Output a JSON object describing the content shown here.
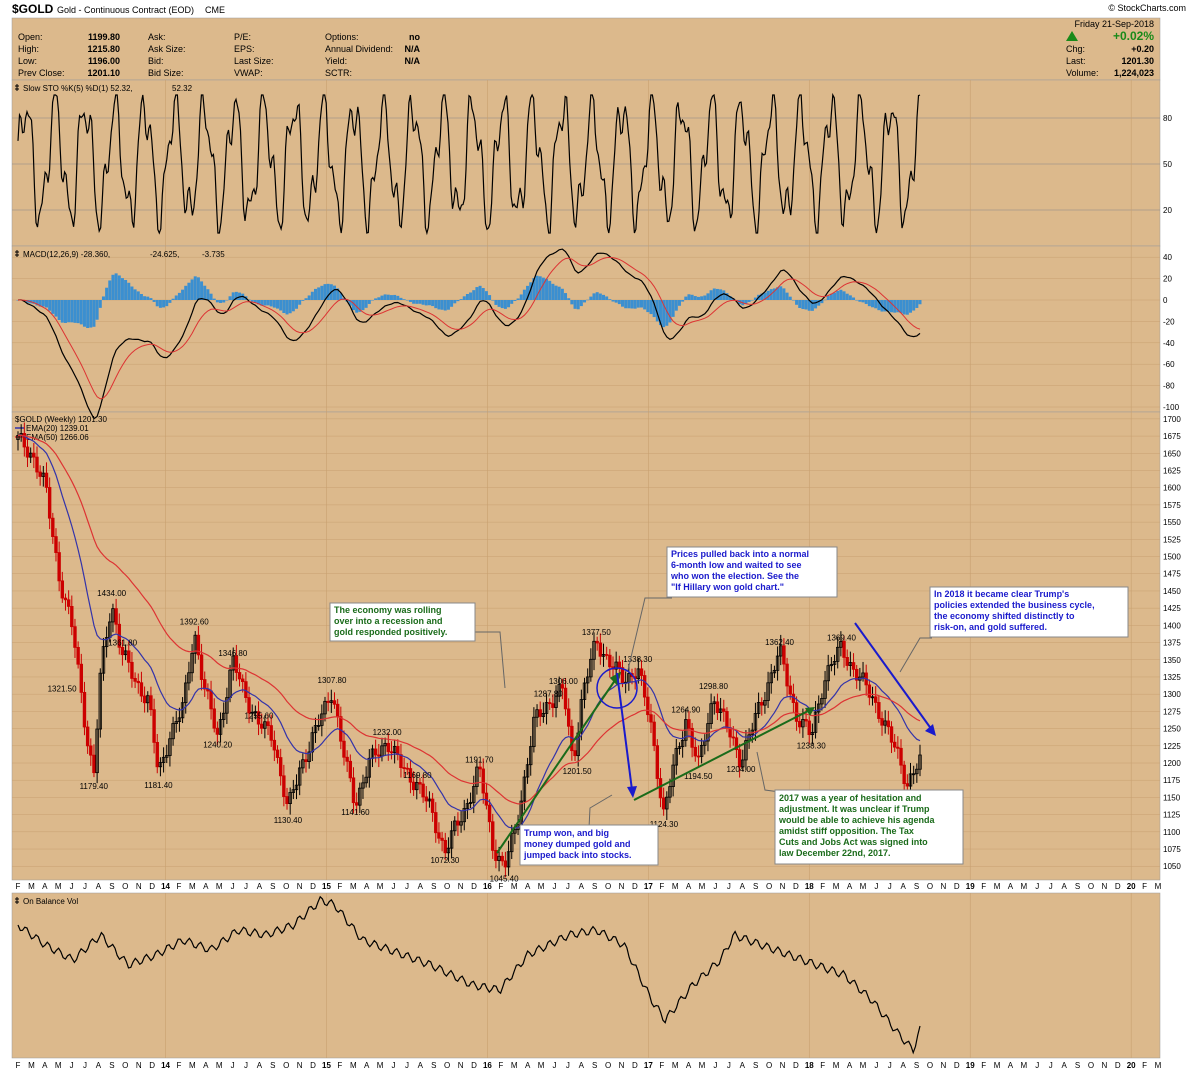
{
  "header": {
    "symbol": "$GOLD",
    "name": "Gold - Continuous Contract (EOD)",
    "exchange": "CME",
    "source": "© StockCharts.com",
    "date": "Friday  21-Sep-2018",
    "change_pct": "+0.02%",
    "chg_label": "Chg:",
    "chg": "+0.20",
    "last_label": "Last:",
    "last": "1201.30",
    "volume_label": "Volume:",
    "volume": "1,224,023",
    "arrow_color": "#1a8a1a",
    "quote": [
      {
        "label": "Open:",
        "value": "1199.80"
      },
      {
        "label": "High:",
        "value": "1215.80"
      },
      {
        "label": "Low:",
        "value": "1196.00"
      },
      {
        "label": "Prev Close:",
        "value": "1201.10"
      }
    ],
    "stats1": [
      {
        "label": "Ask:",
        "value": ""
      },
      {
        "label": "Ask Size:",
        "value": ""
      },
      {
        "label": "Bid:",
        "value": ""
      },
      {
        "label": "Bid Size:",
        "value": ""
      }
    ],
    "stats2": [
      {
        "label": "P/E:",
        "value": ""
      },
      {
        "label": "EPS:",
        "value": ""
      },
      {
        "label": "Last Size:",
        "value": ""
      },
      {
        "label": "VWAP:",
        "value": ""
      }
    ],
    "stats3": [
      {
        "label": "Options:",
        "value": "no"
      },
      {
        "label": "Annual Dividend:",
        "value": "N/A"
      },
      {
        "label": "Yield:",
        "value": "N/A"
      },
      {
        "label": "SCTR:",
        "value": ""
      }
    ]
  },
  "panels": {
    "sto_legend": "Slow STO %K(5) %D(1) 52.32,",
    "sto_legend_red": "52.32",
    "macd_legend": "MACD(12,26,9) -28.360,",
    "macd_signal": "-24.625,",
    "macd_hist": "-3.735",
    "price_legend": "$GOLD (Weekly) 1201.30",
    "ema20_legend": "EMA(20) 1239.01",
    "ema50_legend": "EMA(50) 1266.06",
    "obv_legend": "On Balance Vol"
  },
  "colors": {
    "panel_bg": "#dcb98c",
    "grid": "#c8a070",
    "price_up": "#000000",
    "price_down": "#cc0000",
    "ema20": "#3333aa",
    "ema50": "#dd3333",
    "macd_hist": "#3b8fd0",
    "annotation_green": "#1a6b1a",
    "annotation_blue": "#1a1acc"
  },
  "axis_labels": {
    "months": [
      "F",
      "M",
      "A",
      "M",
      "J",
      "J",
      "A",
      "S",
      "O",
      "N",
      "D",
      "14",
      "F",
      "M",
      "A",
      "M",
      "J",
      "J",
      "A",
      "S",
      "O",
      "N",
      "D",
      "15",
      "F",
      "M",
      "A",
      "M",
      "J",
      "J",
      "A",
      "S",
      "O",
      "N",
      "D",
      "16",
      "F",
      "M",
      "A",
      "M",
      "J",
      "J",
      "A",
      "S",
      "O",
      "N",
      "D",
      "17",
      "F",
      "M",
      "A",
      "M",
      "J",
      "J",
      "A",
      "S",
      "O",
      "N",
      "D",
      "18",
      "F",
      "M",
      "A",
      "M",
      "J",
      "J",
      "A",
      "S",
      "O",
      "N",
      "D",
      "19",
      "F",
      "M",
      "A",
      "M",
      "J",
      "J",
      "A",
      "S",
      "O",
      "N",
      "D",
      "20",
      "F",
      "M"
    ],
    "sto_ticks": [
      "80",
      "50",
      "20"
    ],
    "macd_ticks": [
      "40",
      "20",
      "0",
      "-20",
      "-40",
      "-60",
      "-80",
      "-100"
    ],
    "price_ticks": [
      "1700",
      "1675",
      "1650",
      "1625",
      "1600",
      "1575",
      "1550",
      "1525",
      "1500",
      "1475",
      "1450",
      "1425",
      "1400",
      "1375",
      "1350",
      "1325",
      "1300",
      "1275",
      "1250",
      "1225",
      "1200",
      "1175",
      "1150",
      "1125",
      "1100",
      "1075",
      "1050"
    ]
  },
  "chart_data": {
    "type": "candlestick",
    "title": "$GOLD Gold - Continuous Contract (EOD) CME",
    "y_range": [
      1030,
      1710
    ],
    "price_labels": [
      {
        "x": "Jul-13",
        "value": 1179.4,
        "label": "1179.40"
      },
      {
        "x": "Mar-13",
        "value": 1321.5,
        "label": "1321.50"
      },
      {
        "x": "Aug-13",
        "value": 1434.0,
        "label": "1434.00"
      },
      {
        "x": "Sep-13",
        "value": 1361.8,
        "label": "1361.80"
      },
      {
        "x": "Nov-13",
        "value": 1181.4,
        "label": "1181.40"
      },
      {
        "x": "Mar-14",
        "value": 1392.6,
        "label": "1392.60"
      },
      {
        "x": "May-14",
        "value": 1240.2,
        "label": "1240.20"
      },
      {
        "x": "Jun-14",
        "value": 1346.8,
        "label": "1346.80"
      },
      {
        "x": "Aug-14",
        "value": 1255.6,
        "label": "1255.60"
      },
      {
        "x": "Nov-14",
        "value": 1130.4,
        "label": "1130.40"
      },
      {
        "x": "Jan-15",
        "value": 1307.8,
        "label": "1307.80"
      },
      {
        "x": "Mar-15",
        "value": 1141.6,
        "label": "1141.60"
      },
      {
        "x": "May-15",
        "value": 1232.0,
        "label": "1232.00"
      },
      {
        "x": "Jul-15",
        "value": 1169.8,
        "label": "1169.80"
      },
      {
        "x": "Oct-15",
        "value": 1191.7,
        "label": "1191.70"
      },
      {
        "x": "Jul-15",
        "value": 1072.3,
        "label": "1072.30"
      },
      {
        "x": "Dec-15",
        "value": 1045.4,
        "label": "1045.40"
      },
      {
        "x": "Mar-16",
        "value": 1287.8,
        "label": "1287.80"
      },
      {
        "x": "May-16",
        "value": 1306.0,
        "label": "1306.00"
      },
      {
        "x": "May-16",
        "value": 1201.5,
        "label": "1201.50"
      },
      {
        "x": "Jul-16",
        "value": 1377.5,
        "label": "1377.50"
      },
      {
        "x": "Oct-16",
        "value": 1338.3,
        "label": "1338.30"
      },
      {
        "x": "Dec-16",
        "value": 1124.3,
        "label": "1124.30"
      },
      {
        "x": "Feb-17",
        "value": 1264.9,
        "label": "1264.90"
      },
      {
        "x": "Mar-17",
        "value": 1194.5,
        "label": "1194.50"
      },
      {
        "x": "Apr-17",
        "value": 1298.8,
        "label": "1298.80"
      },
      {
        "x": "Jul-17",
        "value": 1204.0,
        "label": "1204.00"
      },
      {
        "x": "Sep-17",
        "value": 1362.4,
        "label": "1362.40"
      },
      {
        "x": "Dec-17",
        "value": 1238.3,
        "label": "1238.30"
      },
      {
        "x": "Apr-18",
        "value": 1369.4,
        "label": "1369.40"
      },
      {
        "x": "Aug-18",
        "value": 1167.1,
        "label": "1167.10"
      }
    ],
    "indicators": [
      "Slow STO %K(5) %D(1)",
      "MACD(12,26,9)",
      "EMA(20)",
      "EMA(50)",
      "On Balance Vol"
    ],
    "annotations": [
      "The economy was rolling over into a recession and gold responded positively.",
      "Prices pulled back into a normal 6-month low and waited to see who won the election. See the \"If Hillary won gold chart.\"",
      "Trump won, and big money dumped gold and jumped back into stocks.",
      "2017 was a year of hesitation and adjustment. It was unclear if Trump would be able to achieve his agenda amidst stiff opposition. The Tax Cuts and Jobs Act was signed into law December 22nd, 2017.",
      "In 2018 it became clear Trump's policies extended the business cycle, the economy shifted distinctly to risk-on, and gold suffered."
    ]
  },
  "notes": {
    "n1": [
      "The economy was rolling",
      "over into a recession and",
      "gold responded positively."
    ],
    "n2": [
      "Prices pulled back into a normal",
      "6-month low and waited to see",
      "who won the election. See the",
      "\"If Hillary won gold chart.\""
    ],
    "n3": [
      "Trump won, and big",
      "money dumped gold and",
      "jumped back into stocks."
    ],
    "n4": [
      "2017 was a year of hesitation and",
      "adjustment. It was unclear if Trump",
      "would be able to achieve his agenda",
      "amidst stiff opposition. The Tax",
      "Cuts and Jobs Act was signed into",
      "law December 22nd, 2017."
    ],
    "n5": [
      "In 2018 it became clear Trump's",
      "policies extended the business cycle,",
      "the economy shifted distinctly to",
      "risk-on, and gold suffered."
    ]
  }
}
